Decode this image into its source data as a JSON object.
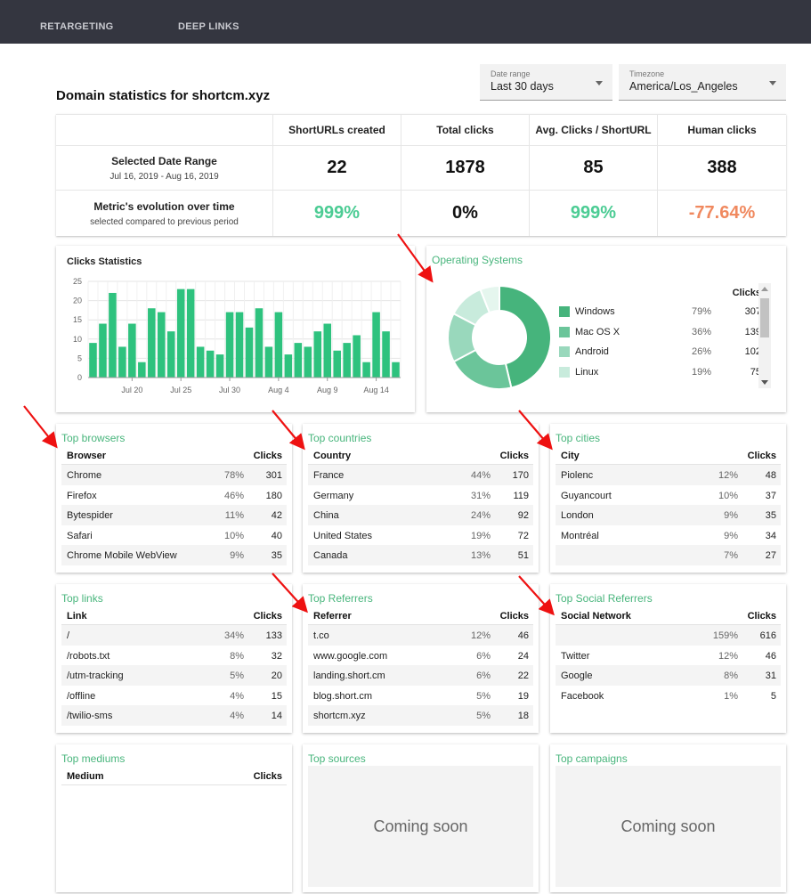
{
  "nav": {
    "items": [
      "RETARGETING",
      "DEEP LINKS"
    ]
  },
  "page_title": "Domain statistics for shortcm.xyz",
  "filters": {
    "date_range": {
      "label": "Date range",
      "value": "Last 30 days"
    },
    "timezone": {
      "label": "Timezone",
      "value": "America/Los_Angeles"
    }
  },
  "summary": {
    "headers": [
      "ShortURLs created",
      "Total clicks",
      "Avg. Clicks / ShortURL",
      "Human clicks"
    ],
    "row1": {
      "label": "Selected Date Range",
      "sublabel": "Jul 16, 2019 - Aug 16, 2019",
      "values": [
        "22",
        "1878",
        "85",
        "388"
      ]
    },
    "row2": {
      "label": "Metric's evolution over time",
      "sublabel": "selected compared to previous period",
      "values": [
        "999%",
        "0%",
        "999%",
        "-77.64%"
      ]
    },
    "colors": {
      "positive": "#4ccc94",
      "negative": "#f0895f",
      "neutral": "#111111"
    }
  },
  "clicks_chart": {
    "title": "Clicks Statistics",
    "bar_color": "#2ec27e"
  },
  "chart_data": {
    "type": "bar",
    "title": "Clicks Statistics",
    "xlabel": "",
    "ylabel": "",
    "ylim": [
      0,
      25
    ],
    "yticks": [
      0,
      5,
      10,
      15,
      20,
      25
    ],
    "xtick_labels": [
      "Jul 20",
      "Jul 25",
      "Jul 30",
      "Aug 4",
      "Aug 9",
      "Aug 14"
    ],
    "xtick_index": [
      4,
      9,
      14,
      19,
      24,
      29
    ],
    "values": [
      9,
      14,
      22,
      8,
      14,
      4,
      18,
      17,
      12,
      23,
      23,
      8,
      7,
      6,
      17,
      17,
      13,
      18,
      8,
      17,
      6,
      9,
      8,
      12,
      14,
      7,
      9,
      11,
      4,
      17,
      12,
      4
    ],
    "grid": true
  },
  "os": {
    "title": "Operating Systems",
    "clicks_header": "Clicks",
    "items": [
      {
        "name": "Windows",
        "pct": "79%",
        "clicks": "307",
        "color": "#46b47c"
      },
      {
        "name": "Mac OS X",
        "pct": "36%",
        "clicks": "139",
        "color": "#6bc59a"
      },
      {
        "name": "Android",
        "pct": "26%",
        "clicks": "102",
        "color": "#99d8bc"
      },
      {
        "name": "Linux",
        "pct": "19%",
        "clicks": "75",
        "color": "#c8ebdc"
      }
    ],
    "donut_extra": [
      {
        "value": 40,
        "color": "#e5f6ee"
      }
    ]
  },
  "tables": {
    "browsers": {
      "title": "Top browsers",
      "col": "Browser",
      "clicks_col": "Clicks",
      "rows": [
        {
          "name": "Chrome",
          "pct": "78%",
          "clicks": "301"
        },
        {
          "name": "Firefox",
          "pct": "46%",
          "clicks": "180"
        },
        {
          "name": "Bytespider",
          "pct": "11%",
          "clicks": "42"
        },
        {
          "name": "Safari",
          "pct": "10%",
          "clicks": "40"
        },
        {
          "name": "Chrome Mobile WebView",
          "pct": "9%",
          "clicks": "35"
        }
      ]
    },
    "countries": {
      "title": "Top countries",
      "col": "Country",
      "clicks_col": "Clicks",
      "rows": [
        {
          "name": "France",
          "pct": "44%",
          "clicks": "170"
        },
        {
          "name": "Germany",
          "pct": "31%",
          "clicks": "119"
        },
        {
          "name": "China",
          "pct": "24%",
          "clicks": "92"
        },
        {
          "name": "United States",
          "pct": "19%",
          "clicks": "72"
        },
        {
          "name": "Canada",
          "pct": "13%",
          "clicks": "51"
        }
      ]
    },
    "cities": {
      "title": "Top cities",
      "col": "City",
      "clicks_col": "Clicks",
      "rows": [
        {
          "name": "Piolenc",
          "pct": "12%",
          "clicks": "48"
        },
        {
          "name": "Guyancourt",
          "pct": "10%",
          "clicks": "37"
        },
        {
          "name": "London",
          "pct": "9%",
          "clicks": "35"
        },
        {
          "name": "Montréal",
          "pct": "9%",
          "clicks": "34"
        },
        {
          "name": "",
          "pct": "7%",
          "clicks": "27"
        }
      ]
    },
    "links": {
      "title": "Top links",
      "col": "Link",
      "clicks_col": "Clicks",
      "rows": [
        {
          "name": "/",
          "pct": "34%",
          "clicks": "133"
        },
        {
          "name": "/robots.txt",
          "pct": "8%",
          "clicks": "32"
        },
        {
          "name": "/utm-tracking",
          "pct": "5%",
          "clicks": "20"
        },
        {
          "name": "/offline",
          "pct": "4%",
          "clicks": "15"
        },
        {
          "name": "/twilio-sms",
          "pct": "4%",
          "clicks": "14"
        }
      ]
    },
    "referrers": {
      "title": "Top Referrers",
      "col": "Referrer",
      "clicks_col": "Clicks",
      "rows": [
        {
          "name": "t.co",
          "pct": "12%",
          "clicks": "46"
        },
        {
          "name": "www.google.com",
          "pct": "6%",
          "clicks": "24"
        },
        {
          "name": "landing.short.cm",
          "pct": "6%",
          "clicks": "22"
        },
        {
          "name": "blog.short.cm",
          "pct": "5%",
          "clicks": "19"
        },
        {
          "name": "shortcm.xyz",
          "pct": "5%",
          "clicks": "18"
        }
      ]
    },
    "social": {
      "title": "Top Social Referrers",
      "col": "Social Network",
      "clicks_col": "Clicks",
      "rows": [
        {
          "name": "",
          "pct": "159%",
          "clicks": "616"
        },
        {
          "name": "Twitter",
          "pct": "12%",
          "clicks": "46"
        },
        {
          "name": "Google",
          "pct": "8%",
          "clicks": "31"
        },
        {
          "name": "Facebook",
          "pct": "1%",
          "clicks": "5"
        }
      ]
    },
    "mediums": {
      "title": "Top mediums",
      "col": "Medium",
      "clicks_col": "Clicks",
      "rows": []
    }
  },
  "sources": {
    "title": "Top sources",
    "message": "Coming soon"
  },
  "campaigns": {
    "title": "Top campaigns",
    "message": "Coming soon"
  },
  "annotation_color": "#ee1111"
}
